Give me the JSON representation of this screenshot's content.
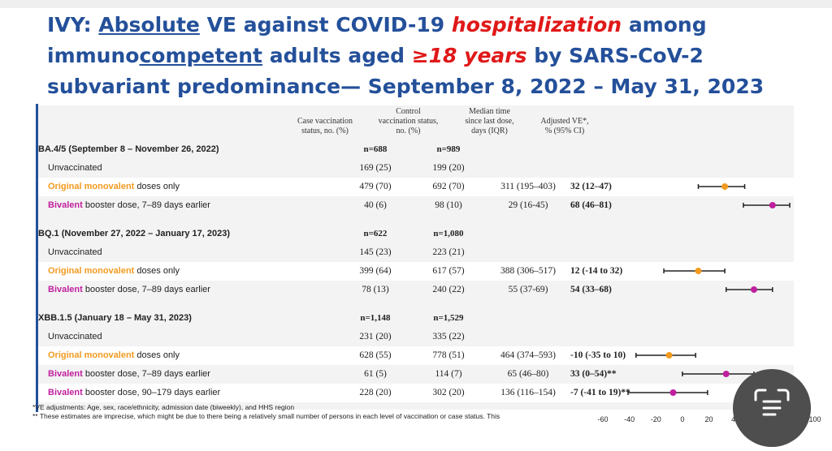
{
  "title": {
    "p1": "IVY: ",
    "p2": "Absolute",
    "p3": " VE against COVID-19 ",
    "p4": "hospitalization",
    "p5": " among",
    "p6": "immuno",
    "p7": "competent",
    "p8": " adults aged ",
    "p9": "≥18 years",
    "p10": " by SARS-CoV-2",
    "p11": "subvariant predominance— September 8, 2022 – May 31, 2023"
  },
  "headers": {
    "case": [
      "Case vaccination",
      "status, no. (%)"
    ],
    "control": [
      "Control",
      "vaccination status,",
      "no. (%)"
    ],
    "median": [
      "Median time",
      "since last dose,",
      "days (IQR)"
    ],
    "ve": [
      "Adjusted VE*,",
      "% (95% CI)"
    ]
  },
  "colors": {
    "title": "#24509a",
    "red": "#e01818",
    "orange": "#f29a1f",
    "magenta": "#c0209e"
  },
  "groups": [
    {
      "label": "BA.4/5 (September 8 – November 26, 2022)",
      "n_case": "n=688",
      "n_control": "n=989",
      "rows": [
        {
          "lead": "",
          "rest": "Unvaccinated",
          "color": "",
          "case": "169 (25)",
          "control": "199 (20)",
          "median": "",
          "ve": ""
        },
        {
          "lead": "Original monovalent",
          "rest": " doses only",
          "color": "orange",
          "case": "479 (70)",
          "control": "692 (70)",
          "median": "311 (195–403)",
          "ve": "32 (12–47)"
        },
        {
          "lead": "Bivalent",
          "rest": " booster dose, 7–89 days earlier",
          "color": "magenta",
          "case": "40 (6)",
          "control": "98 (10)",
          "median": "29 (16-45)",
          "ve": "68 (46–81)"
        }
      ]
    },
    {
      "label": "BQ.1 (November 27, 2022 – January 17, 2023)",
      "n_case": "n=622",
      "n_control": "n=1,080",
      "rows": [
        {
          "lead": "",
          "rest": "Unvaccinated",
          "color": "",
          "case": "145 (23)",
          "control": "223 (21)",
          "median": "",
          "ve": ""
        },
        {
          "lead": "Original monovalent",
          "rest": " doses only",
          "color": "orange",
          "case": "399 (64)",
          "control": "617 (57)",
          "median": "388 (306–517)",
          "ve": "12 (-14 to 32)"
        },
        {
          "lead": "Bivalent",
          "rest": " booster dose, 7–89 days earlier",
          "color": "magenta",
          "case": "78 (13)",
          "control": "240 (22)",
          "median": "55 (37-69)",
          "ve": "54 (33–68)"
        }
      ]
    },
    {
      "label": "XBB.1.5 (January 18 – May 31, 2023)",
      "n_case": "n=1,148",
      "n_control": "n=1,529",
      "rows": [
        {
          "lead": "",
          "rest": "Unvaccinated",
          "color": "",
          "case": "231 (20)",
          "control": "335 (22)",
          "median": "",
          "ve": ""
        },
        {
          "lead": "Original monovalent",
          "rest": " doses only",
          "color": "orange",
          "case": "628 (55)",
          "control": "778 (51)",
          "median": "464 (374–593)",
          "ve": "-10 (-35 to 10)"
        },
        {
          "lead": "Bivalent",
          "rest": " booster dose, 7–89 days earlier",
          "color": "magenta",
          "case": "61 (5)",
          "control": "114 (7)",
          "median": "65 (46–80)",
          "ve": "33 (0–54)**"
        },
        {
          "lead": "Bivalent",
          "rest": " booster dose, 90–179 days earlier",
          "color": "magenta",
          "case": "228 (20)",
          "control": "302 (20)",
          "median": "136 (116–154)",
          "ve": "-7 (-41 to 19)**"
        }
      ]
    }
  ],
  "footnotes": [
    "*VE adjustments: Age, sex, race/ethnicity, admission date (biweekly), and HHS region",
    "** These estimates are imprecise, which might be due to there being a relatively small number of persons in each level of vaccination or case status. This"
  ],
  "chart_data": {
    "type": "scatter",
    "subtype": "forest-plot",
    "x_ticks": [
      -60,
      -40,
      -20,
      0,
      20,
      40,
      60,
      80,
      100
    ],
    "x_tick_labels": [
      "-60",
      "-40",
      "-20",
      "0",
      "20",
      "40",
      "",
      "",
      "100"
    ],
    "xlim": [
      -60,
      100
    ],
    "points": [
      {
        "group": "BA.4/5",
        "label": "Original monovalent",
        "color": "#f29a1f",
        "ve": 32,
        "lo": 12,
        "hi": 47
      },
      {
        "group": "BA.4/5",
        "label": "Bivalent",
        "color": "#c0209e",
        "ve": 68,
        "lo": 46,
        "hi": 81
      },
      {
        "group": "BQ.1",
        "label": "Original monovalent",
        "color": "#f29a1f",
        "ve": 12,
        "lo": -14,
        "hi": 32
      },
      {
        "group": "BQ.1",
        "label": "Bivalent",
        "color": "#c0209e",
        "ve": 54,
        "lo": 33,
        "hi": 68
      },
      {
        "group": "XBB.1.5",
        "label": "Original monovalent",
        "color": "#f29a1f",
        "ve": -10,
        "lo": -35,
        "hi": 10
      },
      {
        "group": "XBB.1.5",
        "label": "Bivalent 7–89 days",
        "color": "#c0209e",
        "ve": 33,
        "lo": 0,
        "hi": 54
      },
      {
        "group": "XBB.1.5",
        "label": "Bivalent 90–179 days",
        "color": "#c0209e",
        "ve": -7,
        "lo": -41,
        "hi": 19
      }
    ]
  }
}
